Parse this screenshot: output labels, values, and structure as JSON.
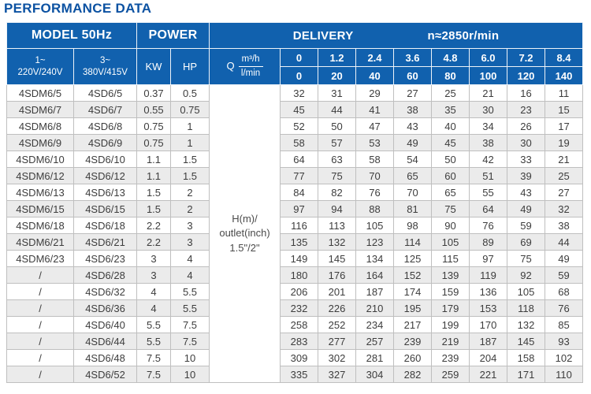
{
  "page": {
    "title": "PERFORMANCE DATA"
  },
  "colors": {
    "header_blue": "#1161ae",
    "title_blue": "#0c52a2",
    "stripe_gray": "#ebebeb",
    "cell_border": "#bfbfbf",
    "data_text": "#3d3d3d"
  },
  "table": {
    "header": {
      "model_group": "MODEL 50Hz",
      "power_group": "POWER",
      "delivery_group": "DELIVERY",
      "speed": "n≈2850r/min",
      "col_single": {
        "line1": "1~",
        "line2": "220V/240V"
      },
      "col_three": {
        "line1": "3~",
        "line2": "380V/415V"
      },
      "kw": "KW",
      "hp": "HP",
      "q_label": "Q",
      "q_top": "m³/h",
      "q_bottom": "l/min",
      "flow_m3h": [
        "0",
        "1.2",
        "2.4",
        "3.6",
        "4.8",
        "6.0",
        "7.2",
        "8.4"
      ],
      "flow_lmin": [
        "0",
        "20",
        "40",
        "60",
        "80",
        "100",
        "120",
        "140"
      ]
    },
    "h_cell": {
      "line1": "H(m)/",
      "line2": "outlet(inch)",
      "line3": "1.5\"/2\""
    },
    "rows": [
      {
        "model_1ph": "4SDM6/5",
        "model_3ph": "4SD6/5",
        "kw": "0.37",
        "hp": "0.5",
        "head": [
          32,
          31,
          29,
          27,
          25,
          21,
          16,
          11
        ]
      },
      {
        "model_1ph": "4SDM6/7",
        "model_3ph": "4SD6/7",
        "kw": "0.55",
        "hp": "0.75",
        "head": [
          45,
          44,
          41,
          38,
          35,
          30,
          23,
          15
        ]
      },
      {
        "model_1ph": "4SDM6/8",
        "model_3ph": "4SD6/8",
        "kw": "0.75",
        "hp": "1",
        "head": [
          52,
          50,
          47,
          43,
          40,
          34,
          26,
          17
        ]
      },
      {
        "model_1ph": "4SDM6/9",
        "model_3ph": "4SD6/9",
        "kw": "0.75",
        "hp": "1",
        "head": [
          58,
          57,
          53,
          49,
          45,
          38,
          30,
          19
        ]
      },
      {
        "model_1ph": "4SDM6/10",
        "model_3ph": "4SD6/10",
        "kw": "1.1",
        "hp": "1.5",
        "head": [
          64,
          63,
          58,
          54,
          50,
          42,
          33,
          21
        ]
      },
      {
        "model_1ph": "4SDM6/12",
        "model_3ph": "4SD6/12",
        "kw": "1.1",
        "hp": "1.5",
        "head": [
          77,
          75,
          70,
          65,
          60,
          51,
          39,
          25
        ]
      },
      {
        "model_1ph": "4SDM6/13",
        "model_3ph": "4SD6/13",
        "kw": "1.5",
        "hp": "2",
        "head": [
          84,
          82,
          76,
          70,
          65,
          55,
          43,
          27
        ]
      },
      {
        "model_1ph": "4SDM6/15",
        "model_3ph": "4SD6/15",
        "kw": "1.5",
        "hp": "2",
        "head": [
          97,
          94,
          88,
          81,
          75,
          64,
          49,
          32
        ]
      },
      {
        "model_1ph": "4SDM6/18",
        "model_3ph": "4SD6/18",
        "kw": "2.2",
        "hp": "3",
        "head": [
          116,
          113,
          105,
          98,
          90,
          76,
          59,
          38
        ]
      },
      {
        "model_1ph": "4SDM6/21",
        "model_3ph": "4SD6/21",
        "kw": "2.2",
        "hp": "3",
        "head": [
          135,
          132,
          123,
          114,
          105,
          89,
          69,
          44
        ]
      },
      {
        "model_1ph": "4SDM6/23",
        "model_3ph": "4SD6/23",
        "kw": "3",
        "hp": "4",
        "head": [
          149,
          145,
          134,
          125,
          115,
          97,
          75,
          49
        ]
      },
      {
        "model_1ph": "/",
        "model_3ph": "4SD6/28",
        "kw": "3",
        "hp": "4",
        "head": [
          180,
          176,
          164,
          152,
          139,
          119,
          92,
          59
        ]
      },
      {
        "model_1ph": "/",
        "model_3ph": "4SD6/32",
        "kw": "4",
        "hp": "5.5",
        "head": [
          206,
          201,
          187,
          174,
          159,
          136,
          105,
          68
        ]
      },
      {
        "model_1ph": "/",
        "model_3ph": "4SD6/36",
        "kw": "4",
        "hp": "5.5",
        "head": [
          232,
          226,
          210,
          195,
          179,
          153,
          118,
          76
        ]
      },
      {
        "model_1ph": "/",
        "model_3ph": "4SD6/40",
        "kw": "5.5",
        "hp": "7.5",
        "head": [
          258,
          252,
          234,
          217,
          199,
          170,
          132,
          85
        ]
      },
      {
        "model_1ph": "/",
        "model_3ph": "4SD6/44",
        "kw": "5.5",
        "hp": "7.5",
        "head": [
          283,
          277,
          257,
          239,
          219,
          187,
          145,
          93
        ]
      },
      {
        "model_1ph": "/",
        "model_3ph": "4SD6/48",
        "kw": "7.5",
        "hp": "10",
        "head": [
          309,
          302,
          281,
          260,
          239,
          204,
          158,
          102
        ]
      },
      {
        "model_1ph": "/",
        "model_3ph": "4SD6/52",
        "kw": "7.5",
        "hp": "10",
        "head": [
          335,
          327,
          304,
          282,
          259,
          221,
          171,
          110
        ]
      }
    ]
  }
}
